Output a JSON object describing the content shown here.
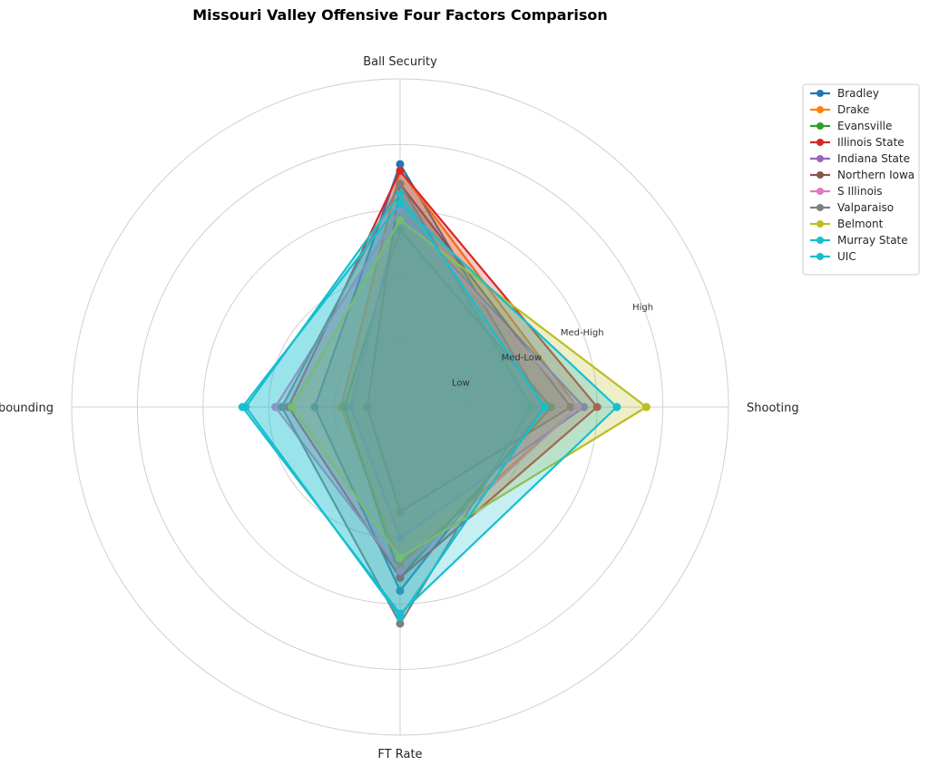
{
  "chart_data": {
    "type": "radar",
    "title": "Missouri Valley Offensive Four Factors Comparison",
    "axes": [
      "Shooting",
      "Ball Security",
      "Off Rebounding",
      "FT Rate"
    ],
    "ring_labels": [
      "Low",
      "Med-Low",
      "Med-High",
      "High"
    ],
    "rlim": [
      0,
      5
    ],
    "grid": true,
    "legend_position": "top-right (outside)",
    "series": [
      {
        "name": "Bradley",
        "color": "#1f77b4",
        "values": [
          2.2,
          3.7,
          1.3,
          2.8
        ]
      },
      {
        "name": "Drake",
        "color": "#ff7f0e",
        "values": [
          2.7,
          3.6,
          0.9,
          2.4
        ]
      },
      {
        "name": "Evansville",
        "color": "#2ca02c",
        "values": [
          2.3,
          2.7,
          0.85,
          2.6
        ]
      },
      {
        "name": "Illinois State",
        "color": "#d62728",
        "values": [
          3.0,
          3.6,
          1.7,
          2.6
        ]
      },
      {
        "name": "Indiana State",
        "color": "#9467bd",
        "values": [
          2.8,
          3.0,
          0.75,
          2.0
        ]
      },
      {
        "name": "Northern Iowa",
        "color": "#8c564b",
        "values": [
          2.6,
          3.4,
          0.5,
          1.6
        ]
      },
      {
        "name": "S Illinois",
        "color": "#e377c2",
        "values": [
          2.7,
          3.0,
          1.9,
          2.5
        ]
      },
      {
        "name": "Valparaiso",
        "color": "#7f7f7f",
        "values": [
          2.0,
          3.4,
          1.8,
          3.3
        ]
      },
      {
        "name": "Belmont",
        "color": "#bcbd22",
        "values": [
          3.75,
          2.85,
          1.65,
          2.3
        ]
      },
      {
        "name": "Murray State",
        "color": "#17becf",
        "values": [
          2.2,
          3.25,
          2.35,
          3.2
        ]
      },
      {
        "name": "UIC",
        "color": "#17becf",
        "values": [
          3.3,
          3.1,
          2.4,
          3.15
        ]
      }
    ]
  }
}
